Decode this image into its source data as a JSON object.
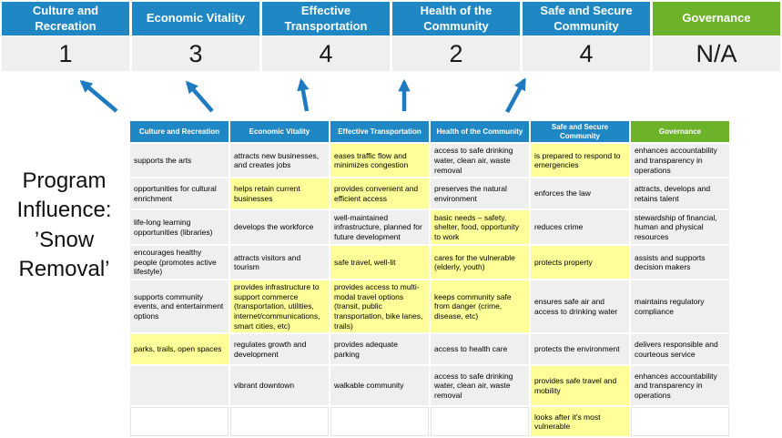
{
  "colors": {
    "header_blue": "#1F88C4",
    "header_green": "#6DB32A",
    "highlight_yellow": "#FFFF99",
    "cell_gray": "#EFEFEF",
    "arrow_blue": "#1E7BBF"
  },
  "summary": {
    "columns": [
      {
        "label": "Culture and Recreation",
        "score": "1",
        "color": "#1F88C4"
      },
      {
        "label": "Economic Vitality",
        "score": "3",
        "color": "#1F88C4"
      },
      {
        "label": "Effective Transportation",
        "score": "4",
        "color": "#1F88C4"
      },
      {
        "label": "Health of the Community",
        "score": "2",
        "color": "#1F88C4"
      },
      {
        "label": "Safe and Secure Community",
        "score": "4",
        "color": "#1F88C4"
      },
      {
        "label": "Governance",
        "score": "N/A",
        "color": "#6DB32A"
      }
    ]
  },
  "program_label": {
    "text": "Program Influence: ’Snow Removal’"
  },
  "matrix": {
    "headers": [
      "Culture and Recreation",
      "Economic Vitality",
      "Effective Transportation",
      "Health of the Community",
      "Safe and Secure Community",
      "Governance"
    ],
    "rows": [
      {
        "cells": [
          {
            "text": "supports the arts",
            "style": "plain"
          },
          {
            "text": "attracts new businesses, and creates jobs",
            "style": "plain"
          },
          {
            "text": "eases traffic flow and minimizes congestion",
            "style": "highlight"
          },
          {
            "text": "access to safe drinking water, clean air, waste removal",
            "style": "plain"
          },
          {
            "text": "is prepared to respond to emergencies",
            "style": "highlight"
          },
          {
            "text": "enhances accountability and transparency in operations",
            "style": "plain"
          }
        ]
      },
      {
        "cells": [
          {
            "text": "opportunities for cultural enrichment",
            "style": "plain"
          },
          {
            "text": "helps retain current businesses",
            "style": "highlight"
          },
          {
            "text": "provides convenient and efficient access",
            "style": "highlight"
          },
          {
            "text": "preserves the natural environment",
            "style": "plain"
          },
          {
            "text": "enforces the law",
            "style": "plain"
          },
          {
            "text": "attracts, develops and retains talent",
            "style": "plain"
          }
        ]
      },
      {
        "cells": [
          {
            "text": "life-long learning opportunities (libraries)",
            "style": "plain"
          },
          {
            "text": "develops the workforce",
            "style": "plain"
          },
          {
            "text": "well-maintained infrastructure, planned for future development",
            "style": "plain"
          },
          {
            "text": "basic needs – safety, shelter, food, opportunity to work",
            "style": "highlight"
          },
          {
            "text": "reduces crime",
            "style": "plain"
          },
          {
            "text": "stewardship of financial, human and physical resources",
            "style": "plain"
          }
        ]
      },
      {
        "cells": [
          {
            "text": "encourages healthy people (promotes active lifestyle)",
            "style": "plain"
          },
          {
            "text": "attracts visitors and tourism",
            "style": "plain"
          },
          {
            "text": "safe travel, well-lit",
            "style": "highlight"
          },
          {
            "text": "cares for the vulnerable (elderly, youth)",
            "style": "highlight"
          },
          {
            "text": "protects property",
            "style": "highlight"
          },
          {
            "text": "assists and supports decision makers",
            "style": "plain"
          }
        ]
      },
      {
        "cells": [
          {
            "text": "supports community events, and entertainment options",
            "style": "plain"
          },
          {
            "text": "provides infrastructure to support commerce (transportation, utilities, internet/communications, smart cities, etc)",
            "style": "highlight"
          },
          {
            "text": "provides access to multi-modal travel options (transit, public transportation, bike lanes, trails)",
            "style": "highlight"
          },
          {
            "text": "keeps community safe from danger (crime, disease, etc)",
            "style": "highlight"
          },
          {
            "text": "ensures safe air and access to drinking water",
            "style": "plain"
          },
          {
            "text": "maintains regulatory compliance",
            "style": "plain"
          }
        ]
      },
      {
        "cells": [
          {
            "text": "parks, trails, open spaces",
            "style": "highlight"
          },
          {
            "text": "regulates growth and development",
            "style": "plain"
          },
          {
            "text": "provides adequate parking",
            "style": "plain"
          },
          {
            "text": "access to health care",
            "style": "plain"
          },
          {
            "text": "protects the environment",
            "style": "plain"
          },
          {
            "text": "delivers responsible and courteous service",
            "style": "plain"
          }
        ]
      },
      {
        "cells": [
          {
            "text": "",
            "style": "plain"
          },
          {
            "text": "vibrant downtown",
            "style": "plain"
          },
          {
            "text": "walkable community",
            "style": "plain"
          },
          {
            "text": "access to safe drinking water, clean air, waste removal",
            "style": "plain"
          },
          {
            "text": "provides safe travel and mobility",
            "style": "highlight"
          },
          {
            "text": "enhances accountability and transparency in operations",
            "style": "plain"
          }
        ]
      },
      {
        "cells": [
          {
            "text": "",
            "style": "blank"
          },
          {
            "text": "",
            "style": "blank"
          },
          {
            "text": "",
            "style": "blank"
          },
          {
            "text": "",
            "style": "blank"
          },
          {
            "text": "looks after it's most vulnerable",
            "style": "highlight"
          },
          {
            "text": "",
            "style": "blank"
          }
        ]
      }
    ]
  }
}
